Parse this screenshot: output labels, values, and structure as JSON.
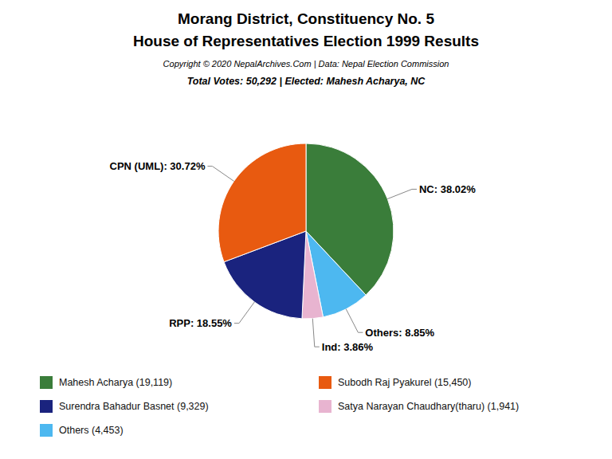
{
  "chart_data": {
    "type": "pie",
    "title": "Morang District, Constituency No. 5",
    "subtitle": "House of Representatives Election 1999 Results",
    "annotations": [
      "Copyright © 2020 NepalArchives.Com | Data: Nepal Election Commission",
      "Total Votes: 50,292 | Elected: Mahesh Acharya, NC"
    ],
    "categories": [
      "NC",
      "Others",
      "Ind",
      "RPP",
      "CPN (UML)"
    ],
    "values": [
      38.02,
      8.85,
      3.86,
      18.55,
      30.72
    ],
    "value_labels": [
      "NC: 38.02%",
      "Others: 8.85%",
      "Ind: 3.86%",
      "RPP: 18.55%",
      "CPN (UML): 30.72%"
    ],
    "colors": [
      "#3a7d3a",
      "#4db8f0",
      "#e8b4d0",
      "#1a237e",
      "#e85a10"
    ],
    "data_labels": true,
    "legend": "bottom",
    "legend_items": [
      {
        "label": "Mahesh Acharya (19,119)",
        "color": "#3a7d3a"
      },
      {
        "label": "Surendra Bahadur Basnet (9,329)",
        "color": "#1a237e"
      },
      {
        "label": "Others (4,453)",
        "color": "#4db8f0"
      },
      {
        "label": "Subodh Raj Pyakurel (15,450)",
        "color": "#e85a10"
      },
      {
        "label": "Satya Narayan Chaudhary(tharu) (1,941)",
        "color": "#e8b4d0"
      }
    ]
  }
}
